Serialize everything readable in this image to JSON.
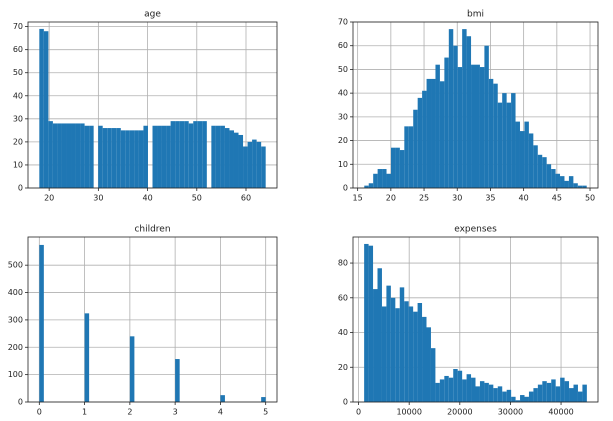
{
  "chart_data": [
    {
      "type": "histogram",
      "title": "age",
      "color": "#1f77b4",
      "grid": true,
      "bins": [
        18,
        18.92,
        19.84,
        20.76,
        21.68,
        22.6,
        23.52,
        24.44,
        25.36,
        26.28,
        27.2,
        28.12,
        29.04,
        29.96,
        30.88,
        31.8,
        32.72,
        33.64,
        34.56,
        35.48,
        36.4,
        37.32,
        38.24,
        39.16,
        40.08,
        41,
        41.92,
        42.84,
        43.76,
        44.68,
        45.6,
        46.52,
        47.44,
        48.36,
        49.28,
        50.2,
        51.12,
        52.04,
        52.96,
        53.88,
        54.8,
        55.72,
        56.64,
        57.56,
        58.48,
        59.4,
        60.32,
        61.24,
        62.16,
        63.08,
        64
      ],
      "values": [
        69,
        68,
        29,
        28,
        28,
        28,
        28,
        28,
        28,
        28,
        27,
        27,
        0,
        27,
        26,
        26,
        26,
        26,
        25,
        25,
        25,
        25,
        25,
        27,
        0,
        27,
        27,
        27,
        27,
        29,
        29,
        29,
        29,
        28,
        29,
        29,
        29,
        0,
        27,
        27,
        27,
        26,
        25,
        24,
        23,
        18,
        20,
        21,
        20,
        18
      ],
      "xlim": [
        15.7,
        66.3
      ],
      "ylim": [
        0,
        72
      ],
      "xticks": [
        20,
        30,
        40,
        50,
        60
      ],
      "yticks": [
        0,
        10,
        20,
        30,
        40,
        50,
        60,
        70
      ]
    },
    {
      "type": "histogram",
      "title": "bmi",
      "color": "#1f77b4",
      "grid": true,
      "bins": [
        16,
        16.67,
        17.34,
        18.01,
        18.68,
        19.35,
        20.02,
        20.69,
        21.36,
        22.03,
        22.7,
        23.37,
        24.04,
        24.71,
        25.38,
        26.05,
        26.72,
        27.39,
        28.06,
        28.73,
        29.4,
        30.07,
        30.74,
        31.41,
        32.08,
        32.75,
        33.42,
        34.09,
        34.76,
        35.43,
        36.1,
        36.77,
        37.44,
        38.11,
        38.78,
        39.45,
        40.12,
        40.79,
        41.46,
        42.13,
        42.8,
        43.47,
        44.14,
        44.81,
        45.48,
        46.15,
        46.82,
        47.49,
        48.16,
        48.83,
        49.5
      ],
      "values": [
        1,
        2,
        6,
        8,
        8,
        6,
        17,
        17,
        16,
        26,
        26,
        33,
        38,
        41,
        46,
        46,
        52,
        45,
        55,
        67,
        60,
        51,
        67,
        64,
        52,
        52,
        51,
        60,
        46,
        44,
        36,
        40,
        36,
        40,
        28,
        24,
        28,
        23,
        18,
        14,
        13,
        10,
        8,
        6,
        5,
        3,
        5,
        2,
        1,
        1
      ],
      "xlim": [
        14.3,
        51.2
      ],
      "ylim": [
        0,
        70
      ],
      "xticks": [
        15,
        20,
        25,
        30,
        35,
        40,
        45,
        50
      ],
      "yticks": [
        0,
        10,
        20,
        30,
        40,
        50,
        60,
        70
      ]
    },
    {
      "type": "histogram",
      "title": "children",
      "color": "#1f77b4",
      "grid": true,
      "bins": [
        0,
        0.1,
        0.2,
        0.3,
        0.4,
        0.5,
        0.6,
        0.7,
        0.8,
        0.9,
        1,
        1.1,
        1.2,
        1.3,
        1.4,
        1.5,
        1.6,
        1.7,
        1.8,
        1.9,
        2,
        2.1,
        2.2,
        2.3,
        2.4,
        2.5,
        2.6,
        2.7,
        2.8,
        2.9,
        3,
        3.1,
        3.2,
        3.3,
        3.4,
        3.5,
        3.6,
        3.7,
        3.8,
        3.9,
        4,
        4.1,
        4.2,
        4.3,
        4.4,
        4.5,
        4.6,
        4.7,
        4.8,
        4.9,
        5
      ],
      "values": [
        574,
        0,
        0,
        0,
        0,
        0,
        0,
        0,
        0,
        0,
        324,
        0,
        0,
        0,
        0,
        0,
        0,
        0,
        0,
        0,
        240,
        0,
        0,
        0,
        0,
        0,
        0,
        0,
        0,
        0,
        157,
        0,
        0,
        0,
        0,
        0,
        0,
        0,
        0,
        0,
        25,
        0,
        0,
        0,
        0,
        0,
        0,
        0,
        0,
        18
      ],
      "xlim": [
        -0.25,
        5.25
      ],
      "ylim": [
        0,
        603
      ],
      "xticks": [
        0,
        1,
        2,
        3,
        4,
        5
      ],
      "yticks": [
        0,
        100,
        200,
        300,
        400,
        500
      ]
    },
    {
      "type": "histogram",
      "title": "expenses",
      "color": "#1f77b4",
      "grid": true,
      "bins": [
        1100,
        1980,
        2860,
        3740,
        4620,
        5500,
        6380,
        7260,
        8140,
        9020,
        9900,
        10780,
        11660,
        12540,
        13420,
        14300,
        15180,
        16060,
        16940,
        17820,
        18700,
        19580,
        20460,
        21340,
        22220,
        23100,
        23980,
        24860,
        25740,
        26620,
        27500,
        28380,
        29260,
        30140,
        31020,
        31900,
        32780,
        33660,
        34540,
        35420,
        36300,
        37180,
        38060,
        38940,
        39820,
        40700,
        41580,
        42460,
        43340,
        44220,
        45100
      ],
      "values": [
        91,
        90,
        65,
        77,
        55,
        67,
        60,
        54,
        66,
        58,
        55,
        52,
        57,
        49,
        43,
        31,
        11,
        13,
        15,
        14,
        19,
        18,
        13,
        16,
        14,
        9,
        12,
        11,
        10,
        8,
        9,
        6,
        7,
        3,
        1,
        4,
        3,
        6,
        8,
        10,
        12,
        11,
        13,
        9,
        14,
        12,
        8,
        10,
        6,
        10
      ],
      "xlim": [
        -1100,
        47300
      ],
      "ylim": [
        0,
        95
      ],
      "xticks": [
        0,
        10000,
        20000,
        30000,
        40000
      ],
      "yticks": [
        0,
        20,
        40,
        60,
        80
      ]
    }
  ]
}
